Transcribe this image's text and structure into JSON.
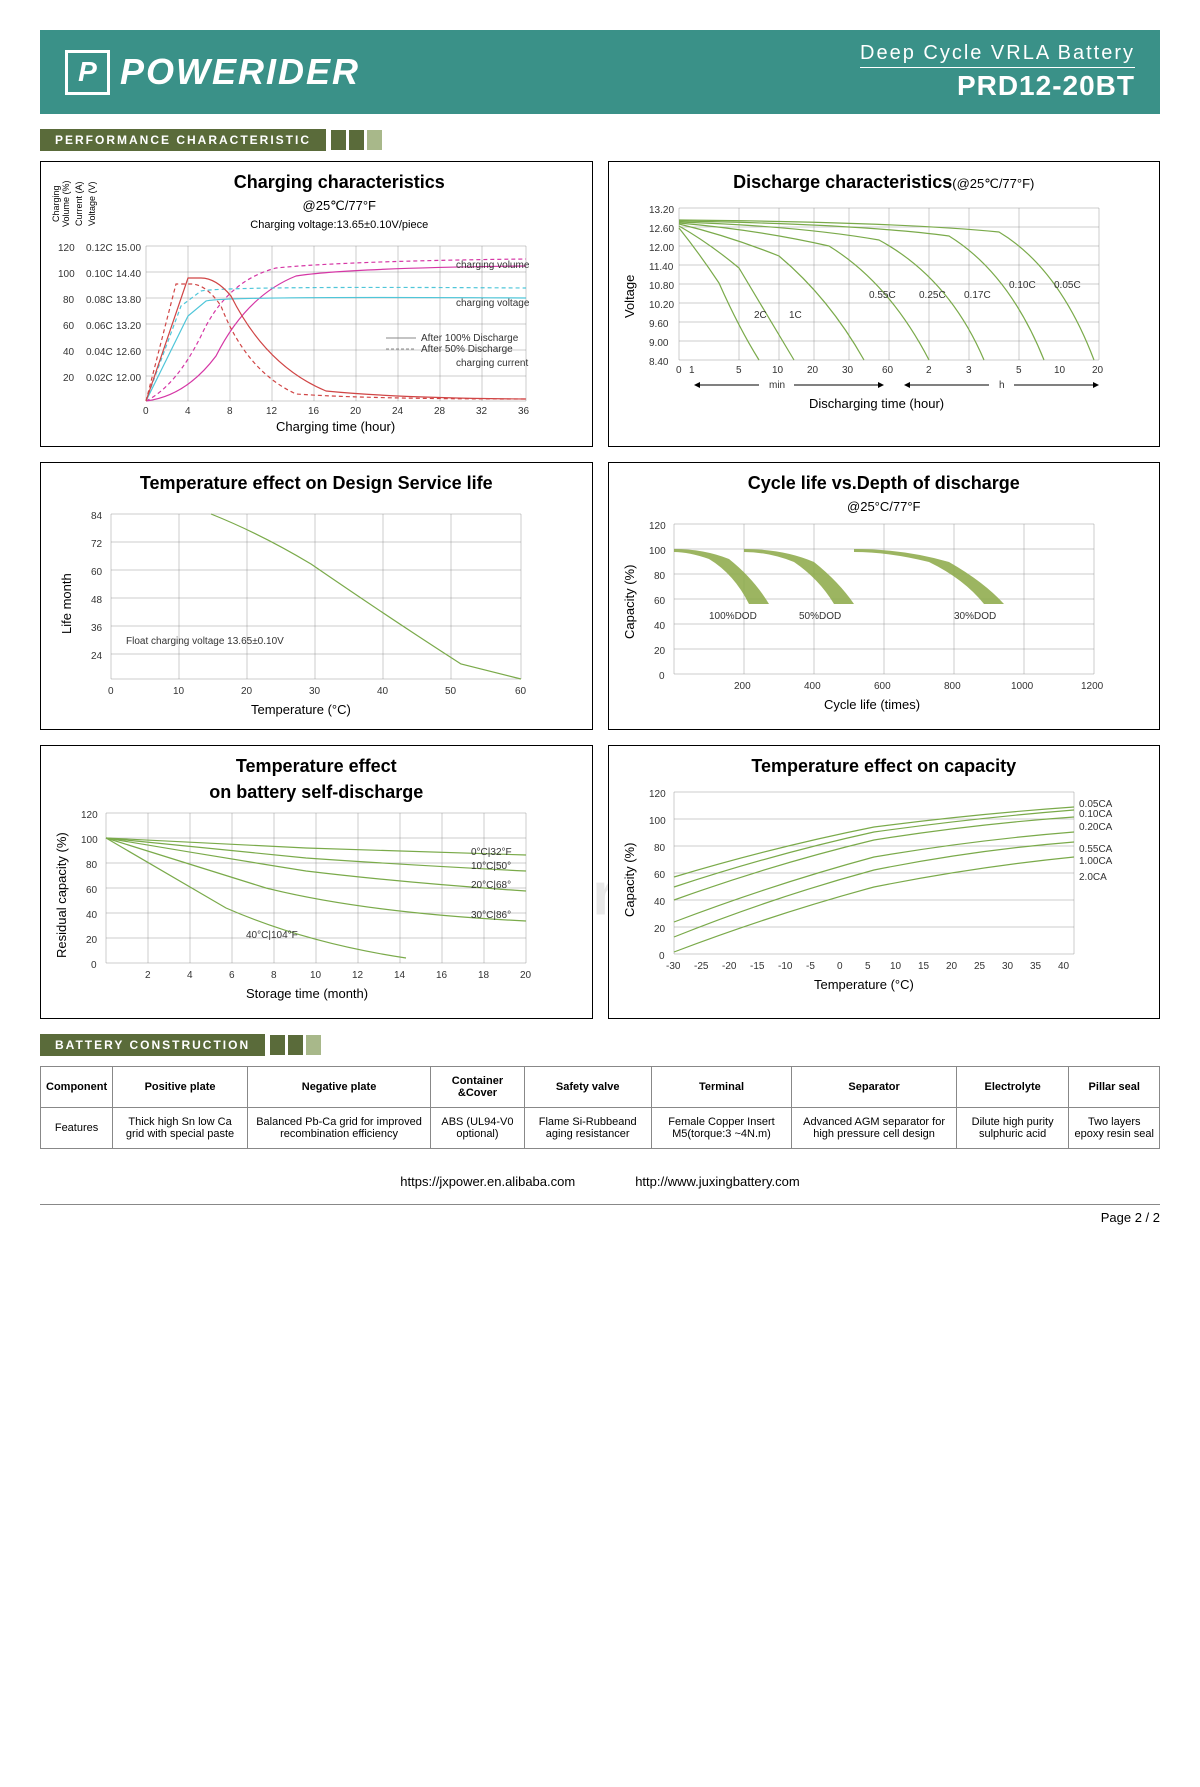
{
  "header": {
    "brand": "POWERIDER",
    "subtitle": "Deep Cycle VRLA Battery",
    "model": "PRD12-20BT"
  },
  "sections": {
    "perf": "PERFORMANCE   CHARACTERISTIC",
    "construction": "BATTERY   CONSTRUCTION"
  },
  "charts": {
    "charging": {
      "title": "Charging characteristics",
      "subtitle": "@25℃/77°F",
      "note": "Charging voltage:13.65±0.10V/piece",
      "y_labels": [
        "Charging Volume (%)",
        "Current (A)",
        "Voltage (V)"
      ],
      "y1_ticks": [
        "120",
        "100",
        "80",
        "60",
        "40",
        "20"
      ],
      "y2_ticks": [
        "0.12C",
        "0.10C",
        "0.08C",
        "0.06C",
        "0.04C",
        "0.02C"
      ],
      "y3_ticks": [
        "15.00",
        "14.40",
        "13.80",
        "13.20",
        "12.60",
        "12.00"
      ],
      "x_ticks": [
        "0",
        "4",
        "8",
        "12",
        "16",
        "20",
        "24",
        "28",
        "32",
        "36"
      ],
      "xlabel": "Charging time (hour)",
      "legend": [
        "charging volume",
        "charging voltage",
        "After 100% Discharge",
        "After 50% Discharge",
        "charging current"
      ],
      "colors": {
        "volume": "#d536a5",
        "voltage": "#4fc6d9",
        "current": "#d04545"
      }
    },
    "discharge": {
      "title": "Discharge characteristics",
      "title_note": "(@25℃/77°F)",
      "y_ticks": [
        "13.20",
        "12.60",
        "12.00",
        "11.40",
        "10.80",
        "10.20",
        "9.60",
        "9.00",
        "8.40"
      ],
      "ylabel": "Voltage",
      "x_ticks_min": [
        "0",
        "1",
        "5",
        "10",
        "20",
        "30",
        "60"
      ],
      "x_ticks_h": [
        "2",
        "3",
        "5",
        "10",
        "20"
      ],
      "x_units": [
        "min",
        "h"
      ],
      "xlabel": "Discharging time (hour)",
      "curves": [
        "2C",
        "1C",
        "0.55C",
        "0.25C",
        "0.17C",
        "0.10C",
        "0.05C"
      ],
      "color": "#7aaa4a"
    },
    "temp_life": {
      "title": "Temperature effect on Design Service life",
      "y_ticks": [
        "84",
        "72",
        "60",
        "48",
        "36",
        "24"
      ],
      "ylabel": "Life month",
      "x_ticks": [
        "0",
        "10",
        "20",
        "30",
        "40",
        "50",
        "60"
      ],
      "xlabel": "Temperature (°C)",
      "note": "Float charging voltage  13.65±0.10V",
      "color": "#7aaa4a"
    },
    "cycle": {
      "title": "Cycle life vs.Depth of discharge",
      "subtitle": "@25°C/77°F",
      "y_ticks": [
        "120",
        "100",
        "80",
        "60",
        "40",
        "20",
        "0"
      ],
      "ylabel": "Capacity (%)",
      "x_ticks": [
        "200",
        "400",
        "600",
        "800",
        "1000",
        "1200"
      ],
      "xlabel": "Cycle life (times)",
      "curves": [
        "100%DOD",
        "50%DOD",
        "30%DOD"
      ],
      "color": "#8ba845"
    },
    "self_discharge": {
      "title": "Temperature effect",
      "title2": "on battery self-discharge",
      "y_ticks": [
        "120",
        "100",
        "80",
        "60",
        "40",
        "20",
        "0"
      ],
      "ylabel": "Residual capacity (%)",
      "x_ticks": [
        "2",
        "4",
        "6",
        "8",
        "10",
        "12",
        "14",
        "16",
        "18",
        "20"
      ],
      "xlabel": "Storage time (month)",
      "curves": [
        "0°C|32°F",
        "10°C|50°",
        "20°C|68°",
        "30°C|86°",
        "40°C|104°F"
      ],
      "color": "#7aaa4a"
    },
    "temp_capacity": {
      "title": "Temperature effect on capacity",
      "y_ticks": [
        "120",
        "100",
        "80",
        "60",
        "40",
        "20",
        "0"
      ],
      "ylabel": "Capacity (%)",
      "x_ticks": [
        "-30",
        "-25",
        "-20",
        "-15",
        "-10",
        "-5",
        "0",
        "5",
        "10",
        "15",
        "20",
        "25",
        "30",
        "35",
        "40"
      ],
      "xlabel": "Temperature (°C)",
      "curves": [
        "0.05CA",
        "0.10CA",
        "0.20CA",
        "0.55CA",
        "1.00CA",
        "2.0CA"
      ],
      "color": "#7aaa4a"
    }
  },
  "table": {
    "headers": [
      "Component",
      "Positive plate",
      "Negative plate",
      "Container &Cover",
      "Safety valve",
      "Terminal",
      "Separator",
      "Electrolyte",
      "Pillar seal"
    ],
    "row_label": "Features",
    "cells": [
      "Thick high Sn low Ca grid with special paste",
      "Balanced Pb-Ca grid for improved recombination efficiency",
      "ABS (UL94-V0 optional)",
      "Flame Si-Rubbeand aging resistancer",
      "Female Copper Insert M5(torque:3 ~4N.m)",
      "Advanced AGM separator for high pressure cell design",
      "Dilute high purity sulphuric acid",
      "Two layers epoxy resin seal"
    ]
  },
  "footer": {
    "url1": "https://jxpower.en.alibaba.com",
    "url2": "http://www.juxingbattery.com",
    "page": "Page   2 / 2",
    "watermark": "es.poweriderbattery.com"
  }
}
